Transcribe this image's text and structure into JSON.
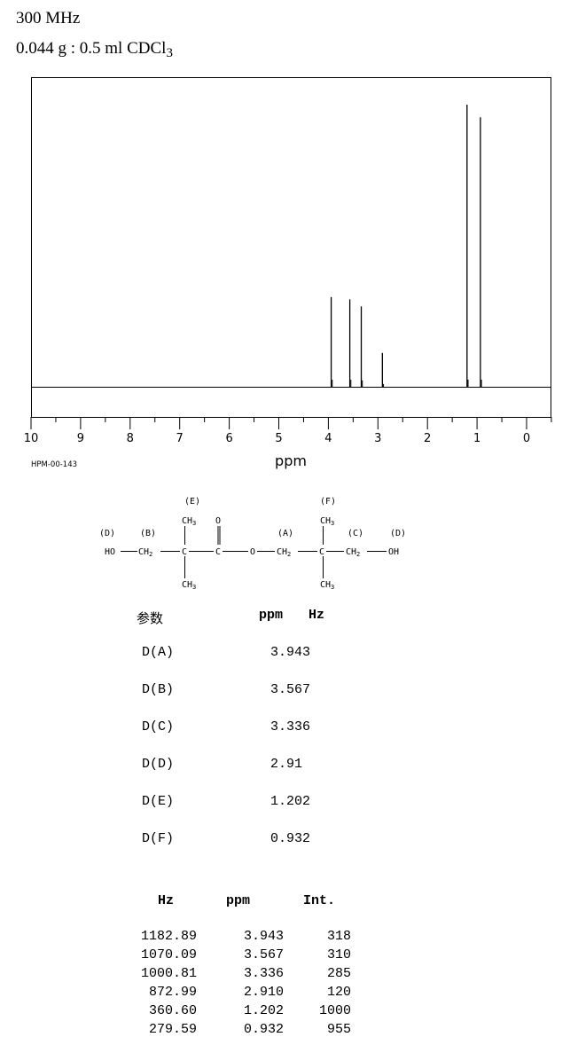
{
  "header": {
    "frequency": "300 MHz",
    "sample_prefix": "0.044 g : 0.5 ml CDCl",
    "sample_sub": "3"
  },
  "chart_data": {
    "type": "line",
    "title": "",
    "xlabel": "ppm",
    "ylabel": "",
    "xlim": [
      10,
      -0.5
    ],
    "x_ticks": [
      "10",
      "9",
      "8",
      "7",
      "6",
      "5",
      "4",
      "3",
      "2",
      "1",
      "0"
    ],
    "code": "HPM-00-143",
    "grid": false,
    "peaks": [
      {
        "ppm": 3.943,
        "intensity": 318
      },
      {
        "ppm": 3.567,
        "intensity": 310
      },
      {
        "ppm": 3.336,
        "intensity": 285
      },
      {
        "ppm": 2.91,
        "intensity": 120
      },
      {
        "ppm": 1.202,
        "intensity": 1000
      },
      {
        "ppm": 0.932,
        "intensity": 955
      }
    ]
  },
  "structure": {
    "labels_top": [
      "(E)",
      "(F)"
    ],
    "labels_mid": [
      "(D)",
      "(B)",
      "(A)",
      "(C)",
      "(D)"
    ],
    "atoms": {
      "ho": "HO",
      "ch2_b": "CH",
      "c1": "C",
      "c_carbonyl": "C",
      "o_carbonyl": "O",
      "o_ester": "O",
      "ch2_a": "CH",
      "c2": "C",
      "ch2_c": "CH",
      "oh": "OH",
      "ch3": "CH",
      "sub2": "2",
      "sub3": "3"
    }
  },
  "assignments": {
    "header_param": "参数",
    "header_ppm": "ppm",
    "header_hz": "Hz",
    "rows": [
      {
        "label": "D(A)",
        "value": "3.943"
      },
      {
        "label": "D(B)",
        "value": "3.567"
      },
      {
        "label": "D(C)",
        "value": "3.336"
      },
      {
        "label": "D(D)",
        "value": "2.91"
      },
      {
        "label": "D(E)",
        "value": "1.202"
      },
      {
        "label": "D(F)",
        "value": "0.932"
      }
    ]
  },
  "peak_table": {
    "headers": [
      "Hz",
      "ppm",
      "Int."
    ],
    "rows": [
      [
        "1182.89",
        "3.943",
        "318"
      ],
      [
        "1070.09",
        "3.567",
        "310"
      ],
      [
        "1000.81",
        "3.336",
        "285"
      ],
      [
        "872.99",
        "2.910",
        "120"
      ],
      [
        "360.60",
        "1.202",
        "1000"
      ],
      [
        "279.59",
        "0.932",
        "955"
      ]
    ]
  }
}
